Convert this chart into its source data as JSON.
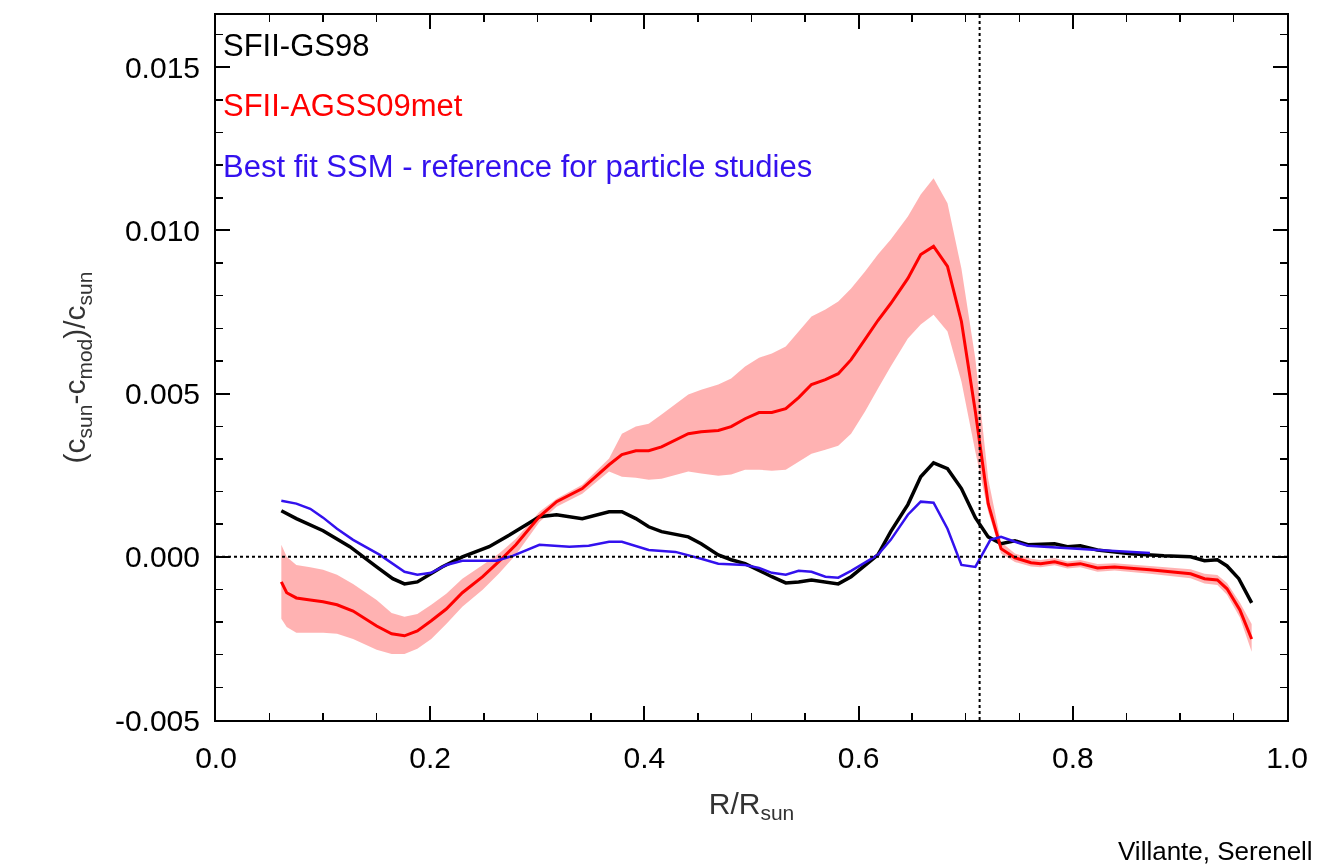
{
  "chart_data": {
    "type": "line",
    "xlabel": "R/R$_{sun}$",
    "ylabel": "(c$_{sun}$-c$_{mod}$)/c$_{sun}$",
    "legend": "top left",
    "xlim": [
      0,
      1.0
    ],
    "ylim": [
      -0.005,
      0.0166
    ],
    "xticks": [
      {
        "value": 0,
        "label": "0.0"
      },
      {
        "value": 0.05,
        "label": null
      },
      {
        "value": 0.1,
        "label": null
      },
      {
        "value": 0.15,
        "label": null
      },
      {
        "value": 0.2,
        "label": "0.2"
      },
      {
        "value": 0.25,
        "label": null
      },
      {
        "value": 0.3,
        "label": null
      },
      {
        "value": 0.35,
        "label": null
      },
      {
        "value": 0.4,
        "label": "0.4"
      },
      {
        "value": 0.45,
        "label": null
      },
      {
        "value": 0.5,
        "label": null
      },
      {
        "value": 0.55,
        "label": null
      },
      {
        "value": 0.6,
        "label": "0.6"
      },
      {
        "value": 0.65,
        "label": null
      },
      {
        "value": 0.7,
        "label": null
      },
      {
        "value": 0.75,
        "label": null
      },
      {
        "value": 0.8,
        "label": "0.8"
      },
      {
        "value": 0.85,
        "label": null
      },
      {
        "value": 0.9,
        "label": null
      },
      {
        "value": 0.95,
        "label": null
      },
      {
        "value": 1.0,
        "label": "1.0"
      }
    ],
    "yticks": [
      {
        "value": -0.005,
        "label": "-0.005"
      },
      {
        "value": -0.004,
        "label": null
      },
      {
        "value": -0.003,
        "label": null
      },
      {
        "value": -0.002,
        "label": null
      },
      {
        "value": -0.001,
        "label": null
      },
      {
        "value": 0,
        "label": "0.000"
      },
      {
        "value": 0.001,
        "label": null
      },
      {
        "value": 0.002,
        "label": null
      },
      {
        "value": 0.003,
        "label": null
      },
      {
        "value": 0.004,
        "label": null
      },
      {
        "value": 0.005,
        "label": "0.005"
      },
      {
        "value": 0.006,
        "label": null
      },
      {
        "value": 0.007,
        "label": null
      },
      {
        "value": 0.008,
        "label": null
      },
      {
        "value": 0.009,
        "label": null
      },
      {
        "value": 0.01,
        "label": "0.010"
      },
      {
        "value": 0.011,
        "label": null
      },
      {
        "value": 0.012,
        "label": null
      },
      {
        "value": 0.013,
        "label": null
      },
      {
        "value": 0.014,
        "label": null
      },
      {
        "value": 0.015,
        "label": "0.015"
      },
      {
        "value": 0.016,
        "label": null
      }
    ],
    "ref_lines": [
      {
        "axis": "x",
        "value": 0.713,
        "color": "#000000",
        "line_style": "dotted"
      },
      {
        "axis": "y",
        "value": 0,
        "color": "#000000",
        "line_style": "dotted"
      }
    ],
    "annotations": [
      "Villante, Serenell"
    ],
    "series": [
      {
        "name": "SFII-GS98",
        "color": "#000000",
        "x": [
          0.061,
          0.075,
          0.1,
          0.125,
          0.15,
          0.165,
          0.176,
          0.188,
          0.211,
          0.23,
          0.255,
          0.274,
          0.302,
          0.318,
          0.342,
          0.367,
          0.379,
          0.392,
          0.404,
          0.416,
          0.441,
          0.453,
          0.469,
          0.481,
          0.494,
          0.519,
          0.532,
          0.544,
          0.556,
          0.581,
          0.593,
          0.618,
          0.63,
          0.646,
          0.658,
          0.67,
          0.683,
          0.696,
          0.709,
          0.721,
          0.733,
          0.746,
          0.758,
          0.783,
          0.795,
          0.807,
          0.823,
          0.854,
          0.885,
          0.91,
          0.923,
          0.935,
          0.944,
          0.955,
          0.967
        ],
        "values": [
          0.00141,
          0.00117,
          0.0008,
          0.00031,
          -0.00031,
          -0.00067,
          -0.00083,
          -0.00077,
          -0.00031,
          0,
          0.00031,
          0.00067,
          0.00123,
          0.00129,
          0.00117,
          0.00138,
          0.00138,
          0.00117,
          0.00092,
          0.00077,
          0.00061,
          0.0004,
          6e-05,
          -9e-05,
          -0.00021,
          -0.00061,
          -0.0008,
          -0.00077,
          -0.00071,
          -0.00083,
          -0.00061,
          6e-05,
          0.00077,
          0.0016,
          0.00245,
          0.00288,
          0.0027,
          0.00209,
          0.0012,
          0.00061,
          0.0004,
          0.00049,
          0.00037,
          0.0004,
          0.00031,
          0.00034,
          0.00021,
          9e-05,
          3e-05,
          0,
          -0.00012,
          -9e-05,
          -0.00028,
          -0.00067,
          -0.00141
        ]
      },
      {
        "name": "SFII-AGSS09met",
        "color": "#ff0000",
        "x": [
          0.061,
          0.066,
          0.075,
          0.088,
          0.1,
          0.113,
          0.128,
          0.15,
          0.164,
          0.176,
          0.188,
          0.201,
          0.215,
          0.23,
          0.249,
          0.264,
          0.28,
          0.302,
          0.318,
          0.342,
          0.367,
          0.379,
          0.392,
          0.404,
          0.416,
          0.441,
          0.453,
          0.469,
          0.481,
          0.494,
          0.507,
          0.519,
          0.532,
          0.544,
          0.556,
          0.569,
          0.581,
          0.593,
          0.606,
          0.618,
          0.63,
          0.646,
          0.658,
          0.67,
          0.683,
          0.696,
          0.709,
          0.721,
          0.733,
          0.746,
          0.761,
          0.77,
          0.783,
          0.795,
          0.807,
          0.823,
          0.839,
          0.872,
          0.91,
          0.923,
          0.935,
          0.944,
          0.956,
          0.967
        ],
        "values": [
          -0.00077,
          -0.0011,
          -0.00126,
          -0.00132,
          -0.00138,
          -0.00147,
          -0.00166,
          -0.00212,
          -0.00236,
          -0.00242,
          -0.00227,
          -0.00196,
          -0.0016,
          -0.0011,
          -0.00061,
          -0.00015,
          0.00037,
          0.00123,
          0.00169,
          0.00209,
          0.00282,
          0.00313,
          0.00325,
          0.00325,
          0.00337,
          0.00377,
          0.00383,
          0.00387,
          0.00399,
          0.00423,
          0.00442,
          0.00442,
          0.00454,
          0.00488,
          0.00528,
          0.00543,
          0.00561,
          0.00604,
          0.00666,
          0.00724,
          0.00776,
          0.00853,
          0.00926,
          0.00951,
          0.0089,
          0.00721,
          0.00445,
          0.00163,
          0.00025,
          -3e-05,
          -0.00018,
          -0.00021,
          -0.00015,
          -0.00025,
          -0.00021,
          -0.00034,
          -0.00031,
          -0.0004,
          -0.00052,
          -0.00067,
          -0.00071,
          -0.00098,
          -0.00163,
          -0.00252
        ],
        "upper": [
          0.00037,
          0,
          -0.00025,
          -0.00032,
          -0.0004,
          -0.00055,
          -0.00083,
          -0.00132,
          -0.00172,
          -0.00184,
          -0.00175,
          -0.00147,
          -0.00113,
          -0.00067,
          -0.00025,
          9e-05,
          0.00055,
          0.00138,
          0.00178,
          0.00221,
          0.00301,
          0.00377,
          0.00399,
          0.00408,
          0.00436,
          0.00497,
          0.00512,
          0.00528,
          0.00546,
          0.00583,
          0.0061,
          0.00623,
          0.00644,
          0.0069,
          0.00736,
          0.00758,
          0.00782,
          0.00822,
          0.00874,
          0.00926,
          0.00972,
          0.01043,
          0.0111,
          0.0116,
          0.01083,
          0.00883,
          0.00607,
          0.00239,
          0.00045,
          0.0001,
          -6e-05,
          -0.0001,
          -4e-05,
          -0.00014,
          -0.0001,
          -0.00022,
          -0.0002,
          -0.00028,
          -0.00038,
          -0.00052,
          -0.00056,
          -0.0008,
          -0.0014,
          -0.00206
        ],
        "lower": [
          -0.0019,
          -0.00215,
          -0.00233,
          -0.00233,
          -0.00233,
          -0.00236,
          -0.00252,
          -0.00285,
          -0.00298,
          -0.00298,
          -0.00282,
          -0.00252,
          -0.00206,
          -0.00153,
          -0.00101,
          -0.00052,
          6e-05,
          0.00107,
          0.00153,
          0.00193,
          0.00261,
          0.00245,
          0.00242,
          0.00236,
          0.00239,
          0.00261,
          0.00255,
          0.00248,
          0.00252,
          0.00267,
          0.00267,
          0.00264,
          0.00267,
          0.00291,
          0.00316,
          0.00328,
          0.0034,
          0.00377,
          0.00445,
          0.00515,
          0.00583,
          0.00669,
          0.00712,
          0.00742,
          0.0069,
          0.00537,
          0.00322,
          0.00138,
          0.0001,
          -0.00016,
          -0.0003,
          -0.00032,
          -0.00026,
          -0.00036,
          -0.00032,
          -0.00046,
          -0.00042,
          -0.00052,
          -0.00066,
          -0.00082,
          -0.00086,
          -0.00116,
          -0.00186,
          -0.00291
        ]
      },
      {
        "name": "Best fit SSM - reference for particle studies",
        "color": "#3311ee",
        "x": [
          0.061,
          0.075,
          0.088,
          0.1,
          0.113,
          0.128,
          0.153,
          0.176,
          0.188,
          0.201,
          0.215,
          0.23,
          0.262,
          0.277,
          0.302,
          0.33,
          0.348,
          0.367,
          0.379,
          0.404,
          0.429,
          0.453,
          0.469,
          0.494,
          0.507,
          0.519,
          0.532,
          0.544,
          0.556,
          0.569,
          0.581,
          0.593,
          0.618,
          0.63,
          0.646,
          0.658,
          0.67,
          0.683,
          0.696,
          0.709,
          0.723,
          0.733,
          0.746,
          0.758,
          0.823,
          0.872
        ],
        "values": [
          0.00172,
          0.00163,
          0.00147,
          0.0012,
          0.00086,
          0.00052,
          6e-05,
          -0.00046,
          -0.00055,
          -0.00049,
          -0.00025,
          -0.00012,
          -0.00012,
          3e-05,
          0.00037,
          0.00031,
          0.00034,
          0.00046,
          0.00046,
          0.00021,
          0.00015,
          -6e-05,
          -0.00021,
          -0.00025,
          -0.00034,
          -0.00049,
          -0.00055,
          -0.00043,
          -0.00046,
          -0.00061,
          -0.00064,
          -0.00043,
          6e-05,
          0.00052,
          0.00129,
          0.00169,
          0.00166,
          0.00086,
          -0.00025,
          -0.00031,
          0.00052,
          0.00061,
          0.00046,
          0.00034,
          0.00021,
          0.00012
        ]
      }
    ]
  }
}
